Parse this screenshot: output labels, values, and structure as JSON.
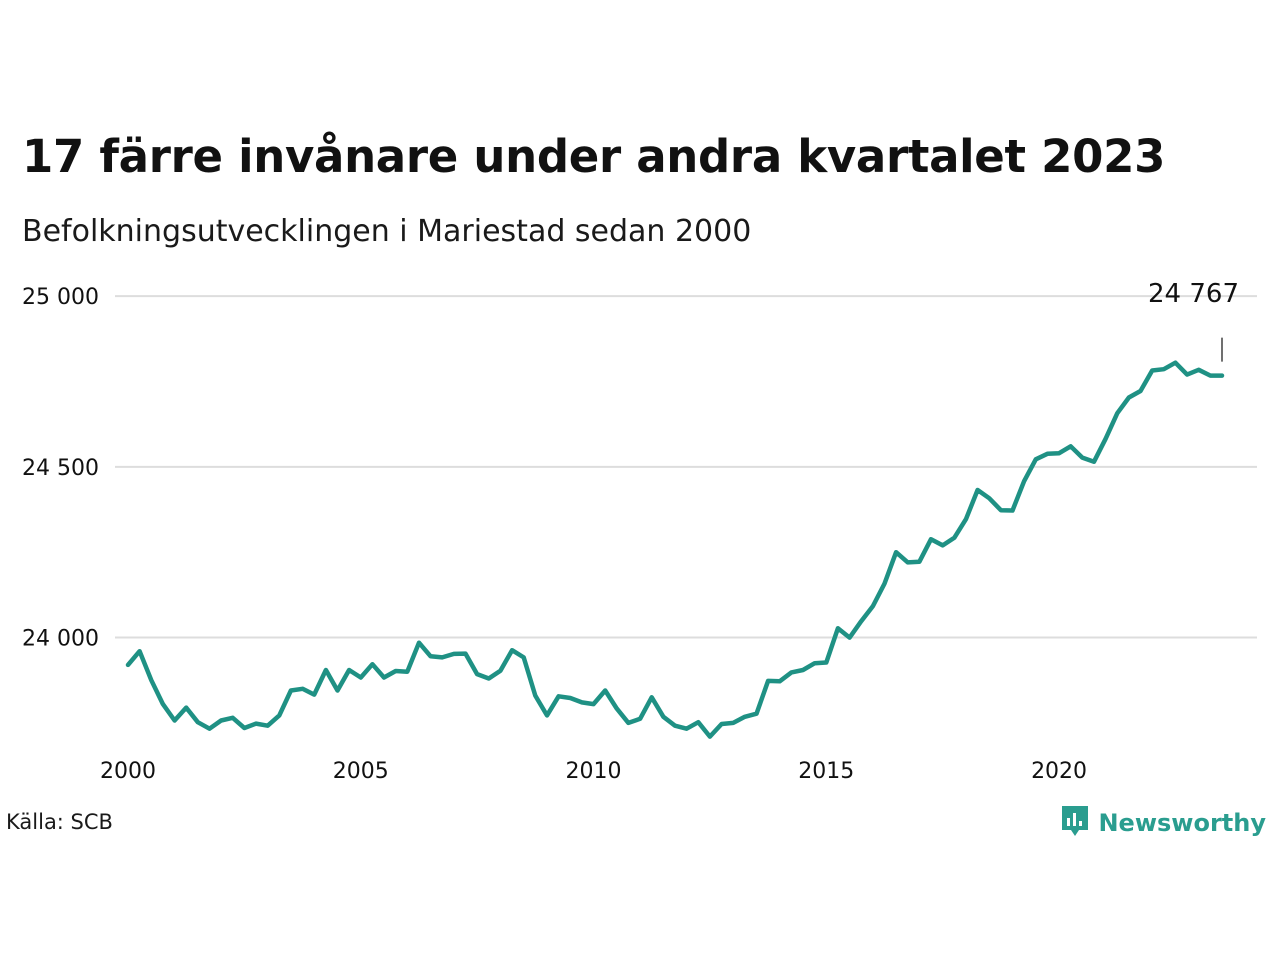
{
  "header": {
    "title": "17 färre invånare under andra kvartalet 2023",
    "subtitle": "Befolkningsutvecklingen i Mariestad sedan 2000"
  },
  "footer": {
    "source": "Källa: SCB",
    "brand": "Newsworthy",
    "brand_icon": "bar-chart-speech-bubble-icon"
  },
  "colors": {
    "line": "#1f9184",
    "grid": "#dddddd",
    "brand": "#2a9d8f",
    "text": "#111111"
  },
  "chart_data": {
    "type": "line",
    "x_ticks": [
      2000,
      2005,
      2010,
      2015,
      2020
    ],
    "y_ticks": [
      24000,
      24500,
      25000
    ],
    "y_tick_labels": [
      "24 000",
      "24 500",
      "25 000"
    ],
    "xlim": [
      2000,
      2023.5
    ],
    "ylim": [
      23700,
      25050
    ],
    "grid": "horizontal",
    "last_value_label": "24 767",
    "series": [
      {
        "x": [
          2000.0,
          2000.25,
          2000.5,
          2000.75,
          2001.0,
          2001.25,
          2001.5,
          2001.75,
          2002.0,
          2002.25,
          2002.5,
          2002.75,
          2003.0,
          2003.25,
          2003.5,
          2003.75,
          2004.0,
          2004.25,
          2004.5,
          2004.75,
          2005.0,
          2005.25,
          2005.5,
          2005.75,
          2006.0,
          2006.25,
          2006.5,
          2006.75,
          2007.0,
          2007.25,
          2007.5,
          2007.75,
          2008.0,
          2008.25,
          2008.5,
          2008.75,
          2009.0,
          2009.25,
          2009.5,
          2009.75,
          2010.0,
          2010.25,
          2010.5,
          2010.75,
          2011.0,
          2011.25,
          2011.5,
          2011.75,
          2012.0,
          2012.25,
          2012.5,
          2012.75,
          2013.0,
          2013.25,
          2013.5,
          2013.75,
          2014.0,
          2014.25,
          2014.5,
          2014.75,
          2015.0,
          2015.25,
          2015.5,
          2015.75,
          2016.0,
          2016.25,
          2016.5,
          2016.75,
          2017.0,
          2017.25,
          2017.5,
          2017.75,
          2018.0,
          2018.25,
          2018.5,
          2018.75,
          2019.0,
          2019.25,
          2019.5,
          2019.75,
          2020.0,
          2020.25,
          2020.5,
          2020.75,
          2021.0,
          2021.25,
          2021.5,
          2021.75,
          2022.0,
          2022.25,
          2022.5,
          2022.75,
          2023.0,
          2023.25,
          2023.5
        ],
        "values": [
          23920,
          23960,
          23875,
          23805,
          23757,
          23795,
          23752,
          23733,
          23757,
          23765,
          23735,
          23748,
          23742,
          23772,
          23845,
          23850,
          23833,
          23905,
          23845,
          23905,
          23883,
          23922,
          23883,
          23902,
          23900,
          23985,
          23945,
          23942,
          23952,
          23953,
          23893,
          23880,
          23903,
          23963,
          23942,
          23830,
          23772,
          23828,
          23823,
          23810,
          23805,
          23845,
          23792,
          23750,
          23762,
          23825,
          23768,
          23742,
          23733,
          23752,
          23710,
          23747,
          23750,
          23768,
          23777,
          23873,
          23872,
          23898,
          23905,
          23925,
          23927,
          24027,
          24000,
          24048,
          24092,
          24158,
          24250,
          24220,
          24222,
          24288,
          24270,
          24292,
          24347,
          24432,
          24408,
          24373,
          24372,
          24458,
          24522,
          24538,
          24540,
          24560,
          24527,
          24515,
          24582,
          24657,
          24703,
          24722,
          24782,
          24786,
          24805,
          24770,
          24784,
          24767,
          24767
        ]
      }
    ]
  }
}
